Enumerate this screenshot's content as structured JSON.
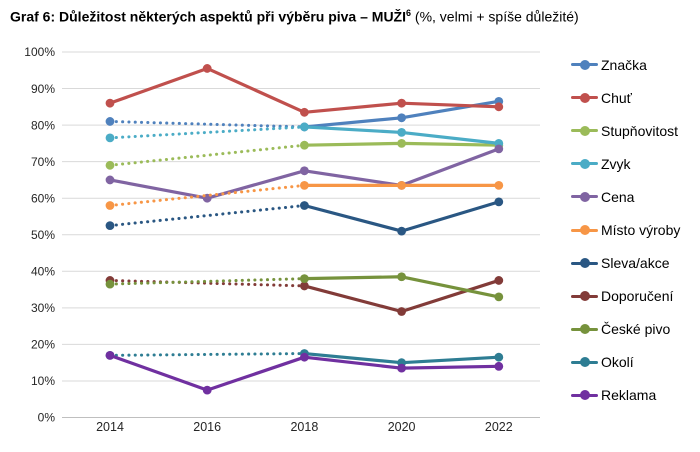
{
  "title": {
    "main": "Graf 6: Důležitost některých aspektů při výběru piva – MUŽI",
    "sup": "6",
    "suffix": " (%, velmi + spíše důležité)"
  },
  "chart_data": {
    "type": "line",
    "title": "Graf 6: Důležitost některých aspektů při výběru piva – MUŽI (%, velmi + spíše důležité)",
    "x_labels": [
      "2014",
      "2016",
      "2018",
      "2020",
      "2022"
    ],
    "yticks": [
      "0%",
      "10%",
      "20%",
      "30%",
      "40%",
      "50%",
      "60%",
      "70%",
      "80%",
      "90%",
      "100%"
    ],
    "ylim": [
      0,
      100
    ],
    "grid": true,
    "legend_position": "right",
    "series": [
      {
        "name": "Značka",
        "color": "#4F81BD",
        "style": "dotted-then-solid",
        "values": [
          81,
          null,
          79.5,
          82,
          86.5
        ]
      },
      {
        "name": "Chuť",
        "color": "#C0504D",
        "style": "solid",
        "values": [
          86,
          95.5,
          83.5,
          86,
          85
        ]
      },
      {
        "name": "Stupňovitost",
        "color": "#9BBB59",
        "style": "dotted-then-solid",
        "values": [
          69,
          null,
          74.5,
          75,
          74.5
        ]
      },
      {
        "name": "Zvyk",
        "color": "#4BACC6",
        "style": "dotted-then-solid",
        "values": [
          76.5,
          null,
          79.5,
          78,
          75
        ]
      },
      {
        "name": "Cena",
        "color": "#8064A2",
        "style": "solid",
        "values": [
          65,
          60,
          67.5,
          63.5,
          73.5
        ]
      },
      {
        "name": "Místo výroby",
        "color": "#F79646",
        "style": "dotted-then-solid",
        "values": [
          58,
          null,
          63.5,
          63.5,
          63.5
        ]
      },
      {
        "name": "Sleva/akce",
        "color": "#2A5783",
        "style": "dotted-then-solid",
        "values": [
          52.5,
          null,
          58,
          51,
          59
        ]
      },
      {
        "name": "Doporučení",
        "color": "#823B38",
        "style": "dotted-then-solid",
        "values": [
          37.5,
          null,
          36,
          29,
          37.5
        ]
      },
      {
        "name": "České pivo",
        "color": "#76923C",
        "style": "dotted-then-solid",
        "values": [
          36.5,
          null,
          38,
          38.5,
          33
        ]
      },
      {
        "name": "Okolí",
        "color": "#2E7D93",
        "style": "dotted-then-solid",
        "values": [
          17,
          null,
          17.5,
          15,
          16.5
        ]
      },
      {
        "name": "Reklama",
        "color": "#7030A0",
        "style": "solid",
        "values": [
          17,
          7.5,
          16.5,
          13.5,
          14
        ]
      }
    ]
  }
}
